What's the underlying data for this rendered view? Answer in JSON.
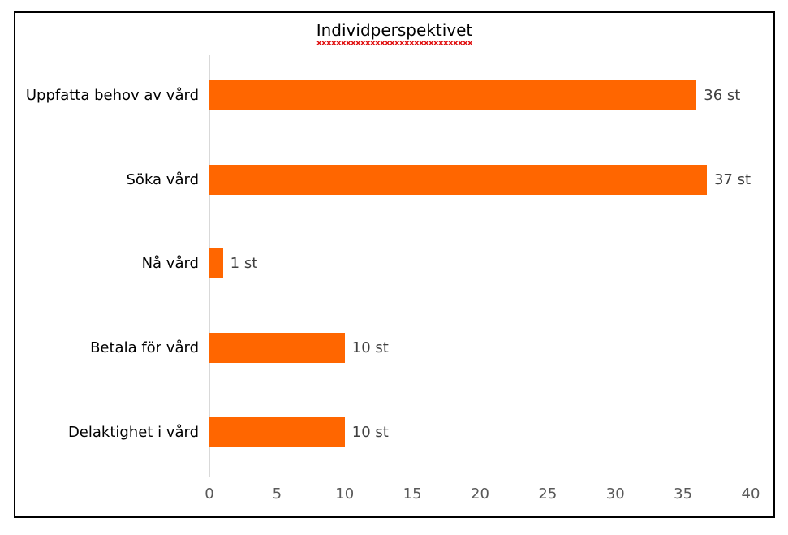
{
  "chart_data": {
    "type": "bar",
    "orientation": "horizontal",
    "title": "Individperspektivet",
    "categories": [
      "Uppfatta behov av vård",
      "Söka vård",
      "Nå vård",
      "Betala för vård",
      "Delaktighet i vård"
    ],
    "values": [
      36,
      37,
      1,
      10,
      10
    ],
    "data_labels": [
      "36 st",
      "37 st",
      "1 st",
      "10 st",
      "10 st"
    ],
    "xlabel": "",
    "ylabel": "",
    "xlim": [
      0,
      40
    ],
    "x_ticks": [
      0,
      5,
      10,
      15,
      20,
      25,
      30,
      35,
      40
    ],
    "grid": false,
    "legend": false,
    "colors": {
      "bar": "#FF6600",
      "axis_line": "#D9D9D9",
      "tick_label": "#595959",
      "value_label": "#404040",
      "category_label": "#000000",
      "title": "#000000",
      "squiggle": "#E01212",
      "border": "#000000"
    }
  }
}
